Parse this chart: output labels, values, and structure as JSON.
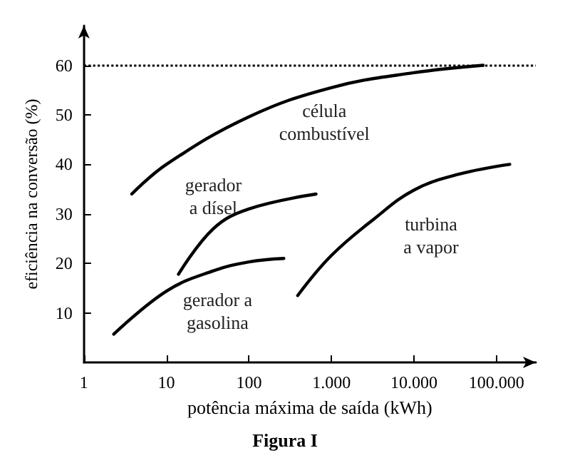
{
  "chart_data": {
    "type": "line",
    "title": "Figura I",
    "xlabel": "potência máxima de saída (kWh)",
    "ylabel": "eficiência na conversão (%)",
    "log": "x",
    "xlim": [
      1,
      300000
    ],
    "ylim": [
      0,
      68
    ],
    "xticks": [
      1,
      10,
      100,
      {
        "value": 1000,
        "label": "1.000"
      },
      {
        "value": 10000,
        "label": "10.000"
      },
      {
        "value": 100000,
        "label": "100.000"
      }
    ],
    "yticks": [
      10,
      20,
      30,
      40,
      50,
      60
    ],
    "grid": false,
    "marker": "none",
    "line_style": "solid",
    "series": [
      {
        "name": "célula\ncombustível",
        "color": "#000000",
        "x": [
          3.8,
          10,
          100,
          1000,
          10000,
          69000
        ],
        "values": [
          34,
          40,
          49.6,
          55.5,
          58.5,
          60
        ]
      },
      {
        "name": "gerador\na dísel",
        "color": "#000000",
        "x": [
          14,
          37,
          100,
          650
        ],
        "values": [
          17.8,
          27,
          31,
          34
        ]
      },
      {
        "name": "gerador a\ngasolina",
        "color": "#000000",
        "x": [
          2.3,
          10,
          37,
          100,
          265
        ],
        "values": [
          5.7,
          14.4,
          18.5,
          20.3,
          21
        ]
      },
      {
        "name": "turbina\na vapor",
        "color": "#000000",
        "x": [
          390,
          1000,
          3300,
          10000,
          35000,
          145000
        ],
        "values": [
          13.5,
          21.6,
          29,
          34.8,
          38,
          40
        ]
      }
    ],
    "ref_lines": [
      {
        "axis": "y",
        "value": 60,
        "color": "#000000",
        "line_style": "dotted"
      }
    ]
  }
}
